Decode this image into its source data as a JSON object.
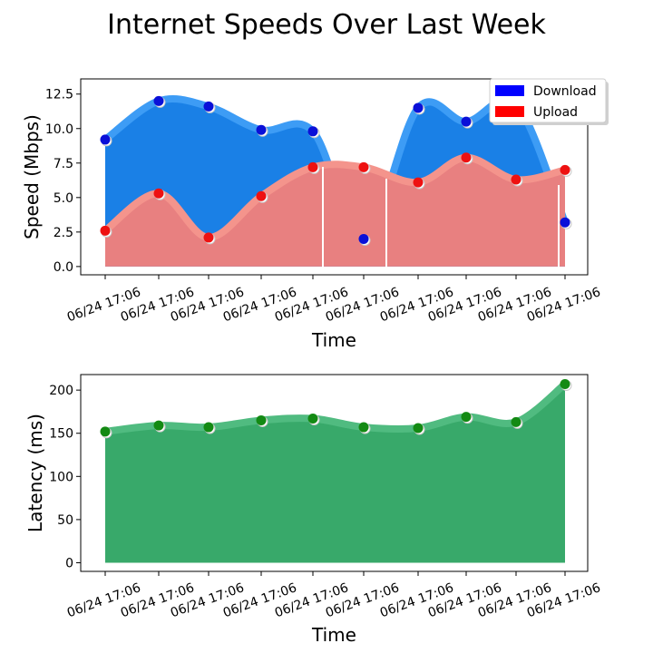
{
  "title": "Internet Speeds Over Last Week",
  "colors": {
    "download_fill": "#1a80e6",
    "download_edge": "#3d9cf5",
    "download_marker": "#0a10d8",
    "upload_fill": "#e88080",
    "upload_edge": "#f4948c",
    "upload_marker": "#ee1111",
    "latency_fill": "#38a96a",
    "latency_edge": "#50bb80",
    "latency_marker": "#138a13",
    "legend_download": "#0000ff",
    "legend_upload": "#ff0000"
  },
  "chart_data": [
    {
      "type": "area",
      "xlabel": "Time",
      "ylabel": "Speed (Mbps)",
      "categories": [
        "06/24 17:06",
        "06/24 17:06",
        "06/24 17:06",
        "06/24 17:06",
        "06/24 17:06",
        "06/24 17:06",
        "06/24 17:06",
        "06/24 17:06",
        "06/24 17:06",
        "06/24 17:06"
      ],
      "yticks": [
        "0.0",
        "2.5",
        "5.0",
        "7.5",
        "10.0",
        "12.5"
      ],
      "ylim": [
        -0.6,
        13.6
      ],
      "legend_position": "top-right",
      "series": [
        {
          "name": "Download",
          "values": [
            9.2,
            12.0,
            11.6,
            9.9,
            9.8,
            2.0,
            11.5,
            10.5,
            11.8,
            3.2
          ]
        },
        {
          "name": "Upload",
          "values": [
            2.6,
            5.3,
            2.1,
            5.1,
            7.2,
            7.2,
            6.1,
            7.9,
            6.3,
            7.0
          ]
        }
      ]
    },
    {
      "type": "area",
      "xlabel": "Time",
      "ylabel": "Latency (ms)",
      "categories": [
        "06/24 17:06",
        "06/24 17:06",
        "06/24 17:06",
        "06/24 17:06",
        "06/24 17:06",
        "06/24 17:06",
        "06/24 17:06",
        "06/24 17:06",
        "06/24 17:06",
        "06/24 17:06"
      ],
      "yticks": [
        "0",
        "50",
        "100",
        "150",
        "200"
      ],
      "ylim": [
        -10,
        218
      ],
      "series": [
        {
          "name": "",
          "values": [
            152,
            159,
            157,
            165,
            167,
            157,
            156,
            169,
            163,
            207
          ]
        }
      ]
    }
  ]
}
